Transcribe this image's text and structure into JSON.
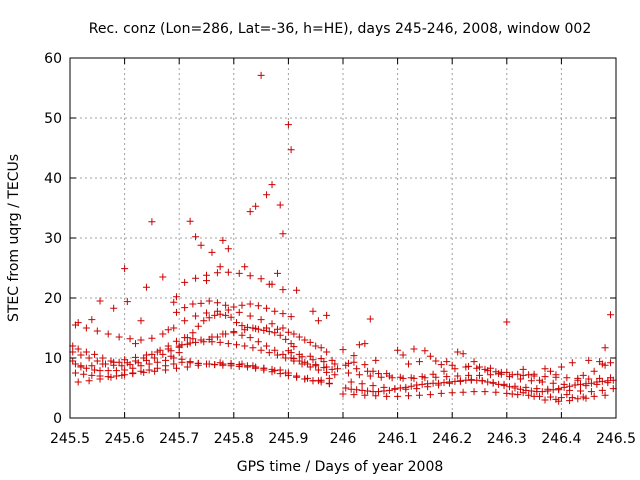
{
  "chart_data": {
    "type": "scatter",
    "title": "Rec. conz (Lon=286, Lat=-36, h=HE), days 245-246, 2008, window 002",
    "xlabel": "GPS time / Days of year 2008",
    "ylabel": "STEC from uqrg / TECUs",
    "xlim": [
      245.5,
      246.5
    ],
    "ylim": [
      0,
      60
    ],
    "xticks": [
      245.5,
      245.6,
      245.7,
      245.8,
      245.9,
      246,
      246.1,
      246.2,
      246.3,
      246.4,
      246.5
    ],
    "xtick_labels": [
      "245.5",
      "245.6",
      "245.7",
      "245.8",
      "245.9",
      "246",
      "246.1",
      "246.2",
      "246.3",
      "246.4",
      "246.5"
    ],
    "yticks": [
      0,
      10,
      20,
      30,
      40,
      50,
      60
    ],
    "ytick_labels": [
      "0",
      "10",
      "20",
      "30",
      "40",
      "50",
      "60"
    ],
    "grid": true,
    "marker": "plus",
    "color": "#cc0000",
    "x": [
      245.505,
      245.51,
      245.52,
      245.53,
      245.545,
      245.555,
      245.57,
      245.585,
      245.6,
      245.615,
      245.63,
      245.645,
      245.66,
      245.675,
      245.69,
      245.705,
      245.72,
      245.735,
      245.75,
      245.765,
      245.78,
      245.795,
      245.81,
      245.825,
      245.84,
      245.855,
      245.87,
      245.885,
      245.9,
      245.915,
      245.93,
      245.945,
      245.96,
      245.975,
      245.505,
      245.515,
      245.53,
      245.545,
      245.56,
      245.575,
      245.59,
      245.605,
      245.62,
      245.635,
      245.65,
      245.665,
      245.68,
      245.695,
      245.71,
      245.725,
      245.74,
      245.755,
      245.77,
      245.785,
      245.8,
      245.815,
      245.83,
      245.845,
      245.86,
      245.875,
      245.89,
      245.905,
      245.92,
      245.935,
      245.95,
      245.965,
      245.98,
      245.51,
      245.525,
      245.54,
      245.555,
      245.57,
      245.585,
      245.6,
      245.615,
      245.63,
      245.645,
      245.66,
      245.675,
      245.69,
      245.705,
      245.72,
      245.735,
      245.75,
      245.765,
      245.78,
      245.795,
      245.81,
      245.825,
      245.84,
      245.855,
      245.87,
      245.885,
      245.9,
      245.915,
      245.93,
      245.945,
      245.96,
      245.975,
      245.505,
      245.52,
      245.535,
      245.55,
      245.565,
      245.58,
      245.595,
      245.61,
      245.625,
      245.64,
      245.655,
      245.67,
      245.685,
      245.7,
      245.715,
      245.73,
      245.745,
      245.76,
      245.775,
      245.79,
      245.805,
      245.82,
      245.835,
      245.85,
      245.865,
      245.88,
      245.895,
      245.91,
      245.925,
      245.94,
      245.955,
      245.97,
      245.985,
      245.51,
      245.53,
      245.55,
      245.57,
      245.59,
      245.61,
      245.63,
      245.65,
      245.67,
      245.69,
      245.71,
      245.73,
      245.75,
      245.77,
      245.79,
      245.81,
      245.83,
      245.85,
      245.87,
      245.89,
      245.91,
      245.93,
      245.95,
      245.97,
      245.515,
      245.535,
      245.555,
      245.575,
      245.595,
      245.615,
      245.635,
      245.655,
      245.675,
      245.695,
      245.715,
      245.735,
      245.755,
      245.775,
      245.795,
      245.815,
      245.835,
      245.855,
      245.875,
      245.895,
      245.915,
      245.935,
      245.955,
      245.975,
      245.52,
      245.54,
      245.56,
      245.58,
      245.6,
      245.62,
      245.64,
      245.66,
      245.68,
      245.7,
      245.72,
      245.74,
      245.76,
      245.78,
      245.8,
      245.82,
      245.84,
      245.86,
      245.88,
      245.9,
      245.92,
      245.94,
      245.96,
      245.685,
      245.7,
      245.705,
      245.715,
      245.725,
      245.735,
      245.745,
      245.755,
      245.765,
      245.775,
      245.785,
      245.795,
      245.805,
      245.815,
      245.825,
      245.835,
      245.845,
      245.855,
      245.865,
      245.875,
      245.885,
      245.895,
      245.905,
      245.91,
      245.695,
      245.71,
      245.725,
      245.74,
      245.755,
      245.77,
      245.785,
      245.8,
      245.815,
      245.83,
      245.845,
      245.86,
      245.875,
      245.89,
      245.905,
      245.71,
      245.73,
      245.75,
      245.77,
      245.79,
      245.81,
      245.83,
      245.85,
      245.87,
      245.89,
      245.9,
      245.92,
      245.94,
      245.96,
      245.98,
      245.91,
      245.93,
      245.95,
      245.97,
      245.99,
      245.905,
      245.925,
      245.945,
      245.965,
      245.985,
      245.515,
      245.54,
      245.6,
      245.62,
      245.64,
      245.65,
      245.67,
      245.72,
      245.73,
      245.74,
      245.76,
      245.78,
      245.79,
      245.83,
      245.84,
      245.85,
      245.86,
      245.87,
      245.88,
      245.89,
      245.9,
      245.905,
      245.915,
      245.945,
      245.97,
      245.605,
      245.63,
      245.695,
      245.75,
      245.775,
      245.82,
      245.865,
      245.885,
      245.955,
      245.555,
      245.58,
      245.68,
      245.69,
      246.005,
      246.015,
      246.025,
      246.035,
      246.045,
      246.055,
      246.065,
      246.075,
      246.085,
      246.095,
      246.105,
      246.115,
      246.125,
      246.135,
      246.145,
      246.155,
      246.165,
      246.175,
      246.185,
      246.195,
      246.205,
      246.215,
      246.225,
      246.235,
      246.245,
      246.255,
      246.265,
      246.275,
      246.285,
      246.295,
      246.305,
      246.315,
      246.325,
      246.335,
      246.345,
      246.355,
      246.365,
      246.375,
      246.385,
      246.395,
      246.405,
      246.415,
      246.425,
      246.435,
      246.445,
      246.455,
      246.465,
      246.475,
      246.485,
      246.495,
      246.01,
      246.03,
      246.05,
      246.07,
      246.09,
      246.11,
      246.13,
      246.15,
      246.17,
      246.19,
      246.21,
      246.23,
      246.25,
      246.27,
      246.29,
      246.31,
      246.33,
      246.35,
      246.37,
      246.39,
      246.41,
      246.43,
      246.45,
      246.47,
      246.49,
      246.0,
      246.02,
      246.04,
      246.06,
      246.08,
      246.1,
      246.12,
      246.14,
      246.16,
      246.18,
      246.2,
      246.22,
      246.24,
      246.26,
      246.28,
      246.3,
      246.32,
      246.34,
      246.36,
      246.38,
      246.4,
      246.42,
      246.44,
      246.46,
      246.48,
      246.005,
      246.025,
      246.045,
      246.065,
      246.085,
      246.105,
      246.125,
      246.145,
      246.165,
      246.185,
      246.205,
      246.225,
      246.245,
      246.265,
      246.285,
      246.305,
      246.325,
      246.345,
      246.365,
      246.385,
      246.405,
      246.425,
      246.445,
      246.465,
      246.485,
      246.015,
      246.035,
      246.055,
      246.075,
      246.095,
      246.115,
      246.135,
      246.155,
      246.175,
      246.195,
      246.215,
      246.235,
      246.255,
      246.275,
      246.295,
      246.315,
      246.335,
      246.355,
      246.375,
      246.395,
      246.415,
      246.435,
      246.455,
      246.475,
      246.495,
      246.0,
      246.02,
      246.03,
      246.04,
      246.06,
      246.1,
      246.11,
      246.13,
      246.15,
      246.16,
      246.17,
      246.19,
      246.21,
      246.22,
      246.24,
      246.26,
      246.27,
      246.28,
      246.3,
      246.32,
      246.33,
      246.35,
      246.37,
      246.38,
      246.4,
      246.42,
      246.44,
      246.45,
      246.47,
      246.48,
      246.49,
      246.01,
      246.02,
      246.04,
      246.055,
      246.08,
      246.12,
      246.14,
      246.18,
      246.2,
      246.23,
      246.25,
      246.29,
      246.34,
      246.36,
      246.39,
      246.43,
      246.46,
      246.48,
      246.05,
      246.3,
      246.49,
      246.475,
      246.43,
      246.41,
      246.39,
      246.37,
      246.35,
      246.33,
      246.31,
      246.445,
      246.415,
      246.395
    ],
    "y": [
      9.5,
      9,
      8.7,
      8.3,
      8,
      7.9,
      7.9,
      7.9,
      8,
      8.3,
      8.7,
      9,
      9.3,
      9.6,
      10,
      9.8,
      9.4,
      9.1,
      9,
      8.9,
      9,
      9,
      8.9,
      8.7,
      8.5,
      8.3,
      8.1,
      8,
      7.5,
      7,
      6.5,
      6.2,
      6.3,
      6.6,
      12,
      11.5,
      11,
      10.6,
      10,
      9.5,
      9.3,
      9.2,
      9.5,
      10,
      10.6,
      11.3,
      12,
      12.8,
      13.4,
      13.2,
      13,
      13.1,
      13.5,
      14,
      14.2,
      13.8,
      13.4,
      12.7,
      12,
      11.3,
      10.6,
      10,
      9.5,
      9,
      8.7,
      8.4,
      8.1,
      7.5,
      7.3,
      7.1,
      7,
      6.9,
      7,
      7.2,
      7.5,
      7.8,
      8,
      8.3,
      8.7,
      9,
      9.3,
      9.2,
      9.1,
      9,
      8.9,
      8.8,
      8.7,
      8.6,
      8.5,
      8.3,
      8,
      7.7,
      7.4,
      7.1,
      6.8,
      6.5,
      6.2,
      6,
      5.7,
      11,
      10.5,
      10,
      9.5,
      9,
      8.8,
      8.7,
      8.9,
      9.2,
      9.6,
      10,
      10.6,
      11.2,
      11.8,
      12.3,
      12.6,
      12.7,
      12.7,
      12.6,
      12.4,
      12.2,
      12,
      11.7,
      11.3,
      10.9,
      10.5,
      10,
      9.5,
      9,
      8.5,
      8,
      7.6,
      7.2,
      15.5,
      15,
      14.5,
      14,
      13.5,
      13.2,
      13,
      13.3,
      14,
      15,
      16.2,
      17,
      17.5,
      17.8,
      18,
      17.6,
      17,
      16.4,
      15.7,
      15,
      14,
      13,
      12,
      11,
      6,
      6.2,
      6.5,
      6.8,
      7.1,
      7.4,
      7.6,
      7.8,
      8,
      8.3,
      8.5,
      8.8,
      9,
      9.2,
      9.1,
      9,
      8.7,
      8.3,
      7.9,
      7.5,
      7,
      6.6,
      6.2,
      5.8,
      8.5,
      8.7,
      9,
      9.3,
      9.7,
      10.1,
      10.5,
      11,
      11.5,
      12,
      12.5,
      13,
      13.5,
      14,
      14.4,
      14.7,
      14.9,
      15,
      14.8,
      14.3,
      13.5,
      12.6,
      11.7,
      10.3,
      10.9,
      12.2,
      13.4,
      14.2,
      15.3,
      16.2,
      16.7,
      17.1,
      17.3,
      17.1,
      16.8,
      15.9,
      15.4,
      15.1,
      15,
      14.8,
      14.6,
      14.4,
      14.2,
      13.8,
      13.1,
      12.4,
      11.9,
      17.6,
      18.4,
      19,
      19.1,
      19.5,
      19.2,
      18.8,
      18.5,
      18.8,
      19,
      18.7,
      18.3,
      17.8,
      17.4,
      16.9,
      22.6,
      23.3,
      23.8,
      24.2,
      24.3,
      24.1,
      23.7,
      23.2,
      22.3,
      21.4,
      11.2,
      10.6,
      10.3,
      9.9,
      9.6,
      9.9,
      9.3,
      8.9,
      8.5,
      8.2,
      10.9,
      10.2,
      9.7,
      9.4,
      9,
      15.9,
      16.4,
      24.9,
      12.4,
      21.8,
      32.7,
      23.5,
      32.8,
      30.2,
      28.8,
      27.6,
      29.6,
      28.2,
      34.4,
      35.3,
      57.1,
      37.2,
      38.9,
      24.1,
      30.7,
      48.9,
      44.7,
      21.3,
      17.8,
      17.1,
      19.4,
      16.2,
      20.2,
      22.9,
      25.2,
      25.2,
      22.3,
      35.5,
      16.2,
      19.5,
      18.3,
      14.7,
      19.3,
      5,
      4.8,
      4.7,
      4.6,
      4.5,
      4.4,
      4.4,
      4.5,
      4.6,
      4.8,
      5,
      5.1,
      5.3,
      5.5,
      5.6,
      5.7,
      5.8,
      5.8,
      5.9,
      6,
      6.1,
      6.2,
      6.3,
      6.4,
      6.3,
      6.2,
      6,
      5.8,
      5.6,
      5.4,
      5.2,
      5,
      4.8,
      4.6,
      4.5,
      4.4,
      4.4,
      4.5,
      4.7,
      4.9,
      5.1,
      5.3,
      5.5,
      5.6,
      5.7,
      5.8,
      6,
      6.1,
      6.2,
      6.3,
      7.5,
      7.2,
      7,
      6.8,
      6.7,
      6.6,
      6.6,
      6.7,
      6.8,
      6.9,
      7,
      7.1,
      7.1,
      7.2,
      7.3,
      7.2,
      7.1,
      7,
      6.9,
      6.8,
      6.7,
      6.6,
      6.5,
      6.6,
      6.7,
      4,
      3.9,
      3.8,
      3.7,
      3.6,
      3.6,
      3.7,
      3.8,
      3.9,
      4.1,
      4.2,
      4.3,
      4.4,
      4.4,
      4.3,
      4.1,
      3.9,
      3.8,
      3.6,
      3.5,
      3.4,
      3.4,
      3.5,
      3.6,
      3.8,
      8.8,
      8.2,
      7.8,
      7.4,
      7,
      6.8,
      6.7,
      6.9,
      7.3,
      7.8,
      8.2,
      8.5,
      8.3,
      7.9,
      7.4,
      6.9,
      6.5,
      6.2,
      6,
      5.8,
      5.6,
      5.5,
      5.4,
      5.6,
      5.9,
      6,
      5.7,
      5.4,
      5.1,
      4.9,
      4.8,
      4.9,
      5.2,
      5.5,
      5.8,
      6.1,
      6.3,
      6.2,
      5.9,
      5.6,
      5.3,
      5.1,
      4.9,
      4.8,
      4.7,
      4.6,
      4.5,
      4.4,
      4.6,
      4.9,
      11.4,
      10.4,
      12.2,
      12.4,
      9.6,
      11.3,
      10.5,
      11.5,
      11.2,
      10.3,
      9.5,
      9.4,
      11,
      10.7,
      9.4,
      8.1,
      8.3,
      7.7,
      7.6,
      7.3,
      8.1,
      7.3,
      8.2,
      7.8,
      8.5,
      9.2,
      7.1,
      9.6,
      9.4,
      11.7,
      9.2,
      9.1,
      9.3,
      8.9,
      7.8,
      7.4,
      9,
      9.4,
      8.9,
      8.8,
      8.6,
      8.5,
      7.6,
      7.2,
      6.3,
      7.2,
      6.3,
      7.8,
      8.8,
      16.5,
      16,
      17.2,
      9,
      3.2,
      3.9,
      3.1,
      3,
      3.6,
      4.2,
      4,
      3.3,
      2.9,
      2.8
    ]
  }
}
